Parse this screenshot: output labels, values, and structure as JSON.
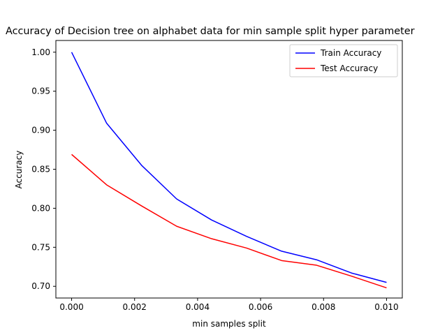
{
  "chart_data": {
    "type": "line",
    "title": "Accuracy of Decision tree on alphabet data for min sample split hyper parameter",
    "xlabel": "min samples split",
    "ylabel": "Accuracy",
    "xlim": [
      -0.0005,
      0.0105
    ],
    "ylim": [
      0.685,
      1.015
    ],
    "x_ticks": [
      0.0,
      0.002,
      0.004,
      0.006,
      0.008,
      0.01
    ],
    "x_tick_labels": [
      "0.000",
      "0.002",
      "0.004",
      "0.006",
      "0.008",
      "0.010"
    ],
    "y_ticks": [
      0.7,
      0.75,
      0.8,
      0.85,
      0.9,
      0.95,
      1.0
    ],
    "y_tick_labels": [
      "0.70",
      "0.75",
      "0.80",
      "0.85",
      "0.90",
      "0.95",
      "1.00"
    ],
    "grid": false,
    "legend_position": "top-right",
    "x": [
      0.0,
      0.001111,
      0.002222,
      0.003333,
      0.004444,
      0.005556,
      0.006667,
      0.007778,
      0.008889,
      0.01
    ],
    "series": [
      {
        "name": "Train Accuracy",
        "color": "#0000ff",
        "values": [
          1.0,
          0.909,
          0.855,
          0.812,
          0.785,
          0.764,
          0.745,
          0.734,
          0.717,
          0.705
        ]
      },
      {
        "name": "Test Accuracy",
        "color": "#ff0000",
        "values": [
          0.869,
          0.83,
          0.803,
          0.777,
          0.761,
          0.749,
          0.733,
          0.727,
          0.713,
          0.698
        ]
      }
    ]
  }
}
